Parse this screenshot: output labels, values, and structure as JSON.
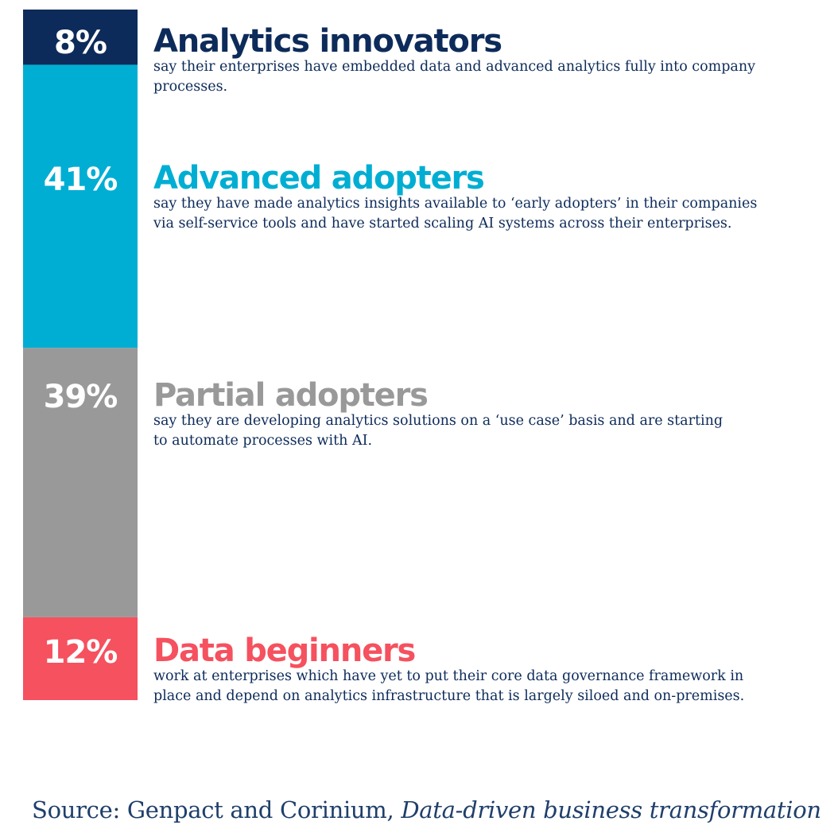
{
  "chart_data": {
    "type": "bar",
    "orientation": "stacked-vertical",
    "unit": "%",
    "categories": [
      "Analytics innovators",
      "Advanced adopters",
      "Partial adopters",
      "Data beginners"
    ],
    "values": [
      8,
      41,
      39,
      12
    ],
    "colors": [
      "#0d2b5a",
      "#00aed3",
      "#999999",
      "#f5515f"
    ],
    "segments": [
      {
        "value_label": "8%",
        "name": "Analytics innovators",
        "description": "say their enterprises have embedded data and advanced analytics fully into company processes.",
        "color": "#0d2b5a"
      },
      {
        "value_label": "41%",
        "name": "Advanced adopters",
        "description": "say they have made analytics insights available to ‘early adopters’ in their companies via self-service tools and have started scaling AI systems across their enterprises.",
        "color": "#00aed3"
      },
      {
        "value_label": "39%",
        "name": "Partial adopters",
        "description": "say they are developing analytics solutions on a ‘use case’ basis and are starting to automate processes with AI.",
        "color": "#999999"
      },
      {
        "value_label": "12%",
        "name": "Data beginners",
        "description": "work at enterprises which have yet to put their core data governance framework in place and depend on analytics infrastructure that is largely siloed and on-premises.",
        "color": "#f5515f"
      }
    ]
  },
  "source": {
    "prefix": "Source: Genpact and Corinium, ",
    "title": "Data-driven business transformation"
  }
}
